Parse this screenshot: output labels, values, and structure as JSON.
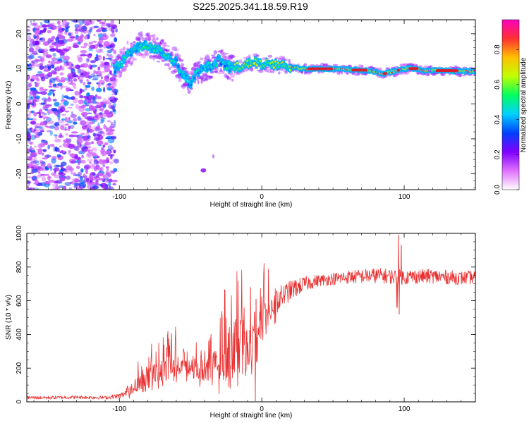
{
  "figure_title": "S225.2025.341.18.59.R19",
  "colors": {
    "snr_line": "#e83030",
    "ridge_core": "#d81e32",
    "background": "#ffffff"
  },
  "chart_data": [
    {
      "type": "heatmap",
      "title": "S225.2025.341.18.59.R19",
      "xlabel": "Height of straight line (km)",
      "ylabel": "Frequency (Hz)",
      "xlim": [
        -165,
        150
      ],
      "ylim": [
        -24.5,
        24
      ],
      "xticks": [
        -100,
        0,
        100
      ],
      "yticks": [
        -20,
        -10,
        0,
        10,
        20
      ],
      "xtick_labels": [
        "-100",
        "0",
        "100"
      ],
      "ytick_labels": [
        "-20",
        "-10",
        "0",
        "10",
        "20"
      ],
      "ridge_frequency_hz": {
        "x": [
          -105,
          -100,
          -95,
          -90,
          -85,
          -80,
          -75,
          -70,
          -65,
          -60,
          -55,
          -50,
          -45,
          -40,
          -35,
          -30,
          -25,
          -20,
          -15,
          -10,
          -5,
          0,
          5,
          10,
          15,
          20,
          30,
          40,
          50,
          60,
          70,
          80,
          85,
          90,
          95,
          100,
          105,
          110,
          115,
          120,
          130,
          140,
          150
        ],
        "y": [
          9,
          11,
          14,
          15,
          17,
          16.5,
          16,
          15,
          13,
          12,
          8,
          6,
          9,
          10,
          11,
          12.5,
          11,
          10,
          11,
          11.5,
          12,
          11,
          11.5,
          11,
          11,
          10.5,
          10,
          10,
          10,
          9.8,
          9.6,
          9.2,
          8.5,
          9,
          9.5,
          10,
          10.2,
          9.8,
          9.5,
          9.5,
          9.5,
          9.3,
          9.3
        ]
      },
      "colorbar": {
        "label": "Normalized spectral amplitude",
        "range": [
          0,
          0.97
        ],
        "ticks": [
          0.0,
          0.2,
          0.4,
          0.6,
          0.8
        ],
        "tick_labels": [
          "0.0",
          "0.2",
          "0.4",
          "0.6",
          "0.8"
        ],
        "stops": [
          "#ffffff",
          "#e070ff",
          "#8000ff",
          "#0040ff",
          "#00d0ff",
          "#00ff60",
          "#c0ff00",
          "#ffc000",
          "#ff3030",
          "#ff00c0"
        ]
      }
    },
    {
      "type": "line",
      "title": "",
      "xlabel": "Height of straight line (km)",
      "ylabel": "SNR (10 * v/v)",
      "xlim": [
        -165,
        150
      ],
      "ylim": [
        0,
        1000
      ],
      "xticks": [
        -100,
        0,
        100
      ],
      "yticks": [
        0,
        200,
        400,
        600,
        800,
        1000
      ],
      "xtick_labels": [
        "-100",
        "0",
        "100"
      ],
      "ytick_labels": [
        "0",
        "200",
        "400",
        "600",
        "800",
        "1000"
      ],
      "envelope": {
        "x": [
          -165,
          -150,
          -130,
          -110,
          -100,
          -95,
          -90,
          -85,
          -80,
          -75,
          -70,
          -65,
          -60,
          -55,
          -50,
          -45,
          -40,
          -35,
          -30,
          -25,
          -20,
          -15,
          -10,
          -5,
          0,
          5,
          10,
          15,
          20,
          25,
          30,
          40,
          50,
          60,
          70,
          80,
          90,
          100,
          110,
          120,
          130,
          140,
          150
        ],
        "y": [
          25,
          25,
          28,
          25,
          35,
          50,
          90,
          130,
          170,
          190,
          200,
          220,
          230,
          240,
          210,
          200,
          190,
          200,
          215,
          300,
          330,
          350,
          370,
          400,
          480,
          560,
          600,
          630,
          660,
          680,
          700,
          720,
          730,
          740,
          745,
          750,
          745,
          740,
          745,
          745,
          740,
          735,
          740
        ]
      },
      "noise_amplitude": {
        "x": [
          -165,
          -110,
          -100,
          -90,
          -80,
          -60,
          -40,
          -30,
          -20,
          -10,
          0,
          10,
          20,
          30,
          40,
          80,
          100,
          150
        ],
        "y": [
          10,
          10,
          15,
          35,
          70,
          80,
          70,
          120,
          160,
          150,
          120,
          80,
          60,
          45,
          35,
          45,
          45,
          40
        ]
      },
      "spikes": [
        {
          "x": -8,
          "y": 680
        },
        {
          "x": -26,
          "y": 665
        },
        {
          "x": -4,
          "y": 610
        },
        {
          "x": -4.5,
          "y": 5
        },
        {
          "x": 96,
          "y": 990
        },
        {
          "x": 98,
          "y": 930
        },
        {
          "x": 96.5,
          "y": 520
        },
        {
          "x": 95,
          "y": 560
        }
      ]
    }
  ]
}
